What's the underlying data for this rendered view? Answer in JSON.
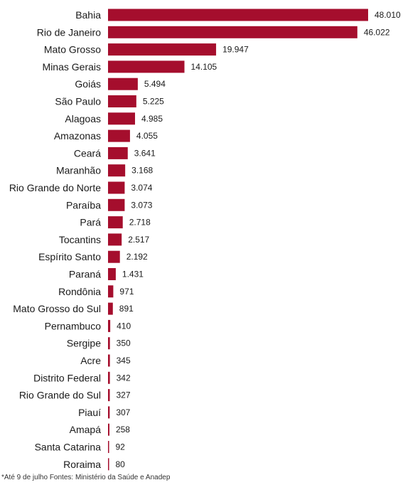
{
  "chart_data": {
    "type": "bar",
    "orientation": "horizontal",
    "categories": [
      "Bahia",
      "Rio de Janeiro",
      "Mato Grosso",
      "Minas Gerais",
      "Goiás",
      "São Paulo",
      "Alagoas",
      "Amazonas",
      "Ceará",
      "Maranhão",
      "Rio Grande do Norte",
      "Paraíba",
      "Pará",
      "Tocantins",
      "Espírito Santo",
      "Paraná",
      "Rondônia",
      "Mato Grosso do Sul",
      "Pernambuco",
      "Sergipe",
      "Acre",
      "Distrito Federal",
      "Rio Grande do Sul",
      "Piauí",
      "Amapá",
      "Santa Catarina",
      "Roraima"
    ],
    "values": [
      48010,
      46022,
      19947,
      14105,
      5494,
      5225,
      4985,
      4055,
      3641,
      3168,
      3074,
      3073,
      2718,
      2517,
      2192,
      1431,
      971,
      891,
      410,
      350,
      345,
      342,
      327,
      307,
      258,
      92,
      80
    ],
    "value_labels": [
      "48.010",
      "46.022",
      "19.947",
      "14.105",
      "5.494",
      "5.225",
      "4.985",
      "4.055",
      "3.641",
      "3.168",
      "3.074",
      "3.073",
      "2.718",
      "2.517",
      "2.192",
      "1.431",
      "971",
      "891",
      "410",
      "350",
      "345",
      "342",
      "327",
      "307",
      "258",
      "92",
      "80"
    ],
    "xlim": [
      0,
      48010
    ],
    "grid": false,
    "legend": "none",
    "bar_color": "#a50e2d"
  },
  "footnote": "*Até 9 de julho Fontes: Ministério da Saúde e Anadep"
}
